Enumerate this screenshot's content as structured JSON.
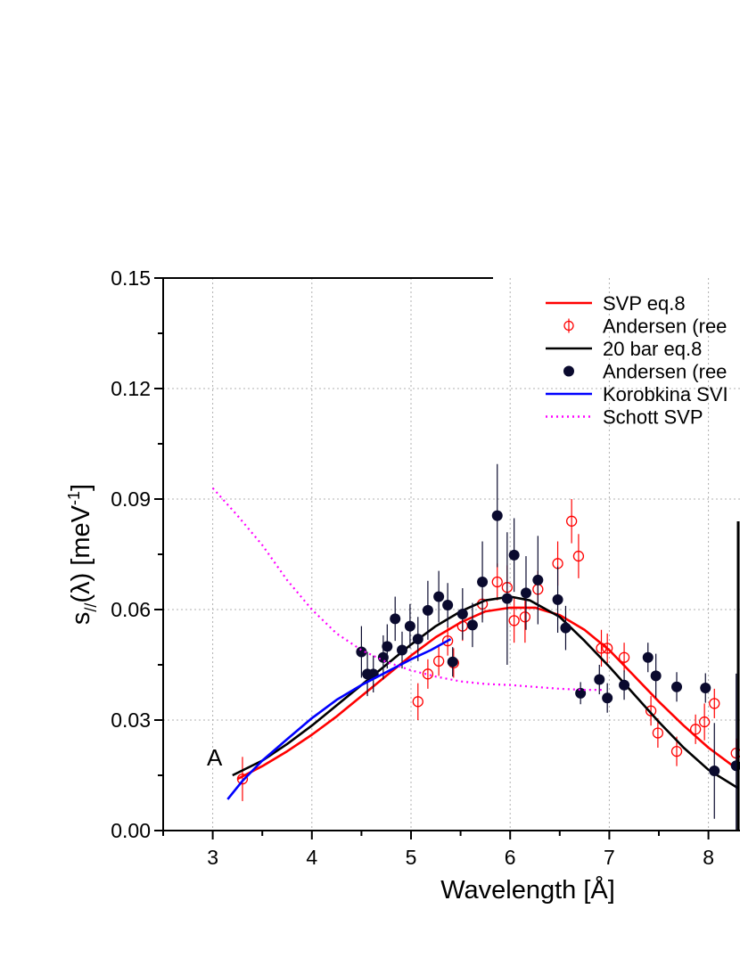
{
  "chart_data": {
    "type": "scatter",
    "xlabel": "Wavelength [Å]",
    "ylabel_parts": {
      "s": "s",
      "sub": "//",
      "lam": "(λ) [meV",
      "sup": "-1",
      "end": "]"
    },
    "xlim": [
      2.5,
      8.3
    ],
    "ylim": [
      0,
      0.15
    ],
    "x_ticks": [
      3,
      4,
      5,
      6,
      7,
      8
    ],
    "x_tick_labels": [
      "3",
      "4",
      "5",
      "6",
      "7",
      "8"
    ],
    "y_ticks": [
      0,
      0.03,
      0.06,
      0.09,
      0.12,
      0.15
    ],
    "y_tick_labels": [
      "0.00",
      "0.03",
      "0.06",
      "0.09",
      "0.12",
      "0.15"
    ],
    "grid": true,
    "panel_label": "A",
    "legend_position": "top-right",
    "series": [
      {
        "name": "SVP eq.8",
        "kind": "line",
        "style": "solid",
        "color": "#ff0000",
        "x": [
          3.25,
          3.5,
          3.75,
          4.0,
          4.25,
          4.5,
          4.75,
          5.0,
          5.25,
          5.5,
          5.75,
          6.0,
          6.25,
          6.5,
          6.75,
          7.0,
          7.25,
          7.5,
          7.75,
          8.0,
          8.3
        ],
        "y": [
          0.014,
          0.0175,
          0.0215,
          0.026,
          0.031,
          0.0365,
          0.042,
          0.0475,
          0.0525,
          0.0565,
          0.0595,
          0.0605,
          0.0605,
          0.0585,
          0.0545,
          0.049,
          0.042,
          0.035,
          0.0285,
          0.0225,
          0.0165
        ]
      },
      {
        "name": "Andersen (ree",
        "kind": "points",
        "marker": "open-circle",
        "color": "#ff0000",
        "x": [
          3.3,
          5.07,
          5.17,
          5.28,
          5.37,
          5.43,
          5.52,
          5.72,
          5.87,
          5.97,
          6.04,
          6.15,
          6.28,
          6.48,
          6.62,
          6.69,
          6.92,
          6.98,
          7.15,
          7.42,
          7.49,
          7.68,
          7.87,
          7.96,
          8.06,
          8.28
        ],
        "y": [
          0.014,
          0.035,
          0.0425,
          0.046,
          0.0515,
          0.0455,
          0.0555,
          0.0615,
          0.0675,
          0.066,
          0.057,
          0.058,
          0.0655,
          0.0725,
          0.084,
          0.0745,
          0.0495,
          0.0495,
          0.047,
          0.0325,
          0.0265,
          0.0215,
          0.0275,
          0.0295,
          0.0345,
          0.021
        ],
        "err": [
          0.006,
          0.005,
          0.004,
          0.004,
          0.004,
          0.004,
          0.004,
          0.004,
          0.005,
          0.006,
          0.006,
          0.007,
          0.005,
          0.006,
          0.006,
          0.006,
          0.005,
          0.004,
          0.004,
          0.004,
          0.004,
          0.004,
          0.004,
          0.005,
          0.004,
          0.004
        ]
      },
      {
        "name": "20 bar eq.8",
        "kind": "line",
        "style": "solid",
        "color": "#000000",
        "x": [
          3.2,
          3.5,
          3.75,
          4.0,
          4.25,
          4.5,
          4.75,
          5.0,
          5.25,
          5.5,
          5.75,
          6.0,
          6.2,
          6.5,
          6.75,
          7.0,
          7.25,
          7.5,
          7.75,
          8.0,
          8.3
        ],
        "y": [
          0.015,
          0.019,
          0.0235,
          0.0285,
          0.034,
          0.0395,
          0.045,
          0.0505,
          0.0555,
          0.0595,
          0.0625,
          0.0635,
          0.0625,
          0.058,
          0.0515,
          0.0445,
          0.037,
          0.0295,
          0.0225,
          0.0165,
          0.0115
        ]
      },
      {
        "name": "Andersen (ree",
        "kind": "points",
        "marker": "filled-circle",
        "color": "#0a0a2e",
        "x": [
          4.5,
          4.56,
          4.62,
          4.72,
          4.76,
          4.84,
          4.91,
          4.99,
          5.07,
          5.17,
          5.28,
          5.37,
          5.42,
          5.52,
          5.62,
          5.72,
          5.87,
          5.97,
          6.04,
          6.16,
          6.28,
          6.48,
          6.56,
          6.71,
          6.9,
          6.98,
          7.15,
          7.39,
          7.47,
          7.68,
          7.97,
          8.06,
          8.28
        ],
        "y": [
          0.0485,
          0.0425,
          0.0425,
          0.047,
          0.05,
          0.0575,
          0.049,
          0.0555,
          0.052,
          0.0598,
          0.0635,
          0.0612,
          0.0458,
          0.0588,
          0.0558,
          0.0675,
          0.0855,
          0.063,
          0.0748,
          0.0645,
          0.068,
          0.0627,
          0.055,
          0.0373,
          0.041,
          0.036,
          0.0395,
          0.047,
          0.042,
          0.039,
          0.0387,
          0.0162,
          0.0176
        ],
        "err": [
          0.007,
          0.006,
          0.005,
          0.006,
          0.006,
          0.006,
          0.005,
          0.006,
          0.006,
          0.008,
          0.007,
          0.006,
          0.004,
          0.007,
          0.006,
          0.011,
          0.014,
          0.018,
          0.01,
          0.01,
          0.012,
          0.009,
          0.006,
          0.003,
          0.004,
          0.004,
          0.004,
          0.004,
          0.006,
          0.004,
          0.004,
          0.013,
          0.025
        ]
      },
      {
        "name": "Korobkina SVI",
        "kind": "line",
        "style": "solid",
        "color": "#0000ff",
        "x": [
          3.15,
          3.3,
          3.5,
          3.75,
          4.0,
          4.25,
          4.5,
          4.75,
          5.0,
          5.2,
          5.4
        ],
        "y": [
          0.0085,
          0.0135,
          0.019,
          0.0248,
          0.0305,
          0.0355,
          0.0395,
          0.043,
          0.0465,
          0.049,
          0.052
        ]
      },
      {
        "name": "Schott SVP",
        "kind": "line",
        "style": "dotted",
        "color": "#ff00ff",
        "x": [
          3.0,
          3.25,
          3.5,
          3.75,
          4.0,
          4.25,
          4.5,
          4.75,
          5.0,
          5.25,
          5.5,
          5.75,
          6.0,
          6.25,
          6.5,
          6.75,
          6.95
        ],
        "y": [
          0.093,
          0.0855,
          0.0775,
          0.068,
          0.06,
          0.0535,
          0.049,
          0.0458,
          0.0435,
          0.0418,
          0.0405,
          0.0398,
          0.0395,
          0.039,
          0.0385,
          0.0382,
          0.0382
        ]
      }
    ]
  }
}
